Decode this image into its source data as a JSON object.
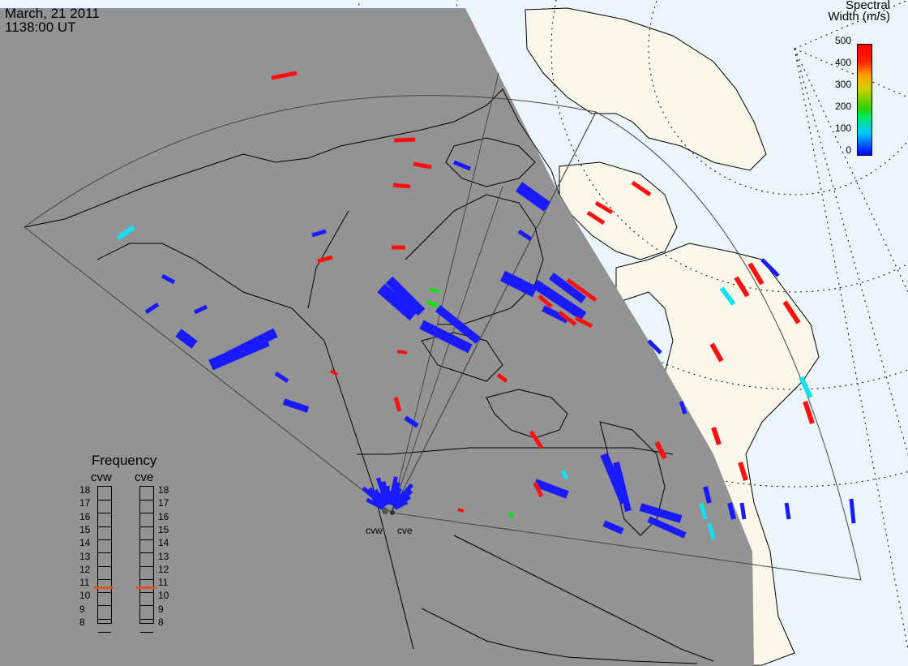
{
  "header": {
    "date": "March, 21 2011",
    "time": "1138:00 UT"
  },
  "colorbar": {
    "title_line1": "Spectral",
    "title_line2": "Width (m/s)",
    "ticks": [
      "500",
      "400",
      "300",
      "200",
      "100",
      "0"
    ],
    "colors": [
      "#0000ff",
      "#00c8ff",
      "#00e860",
      "#d0d000",
      "#ff2000"
    ]
  },
  "frequency_panel": {
    "title": "Frequency",
    "radar_left": "cvw",
    "radar_right": "cve",
    "levels": [
      "18",
      "17",
      "16",
      "15",
      "14",
      "13",
      "12",
      "11",
      "10",
      "9",
      "8"
    ],
    "current_cvw": 11,
    "current_cve": 11
  },
  "radars": [
    {
      "code": "cvw"
    },
    {
      "code": "cve"
    }
  ],
  "colors": {
    "night": "#939393",
    "ocean_day": "#eaf6fc",
    "land_day": "#fbf8ea",
    "vector_low": "#1a1aff",
    "vector_high": "#ff1010",
    "vector_cyan": "#10e0f0",
    "vector_green": "#10e010"
  }
}
